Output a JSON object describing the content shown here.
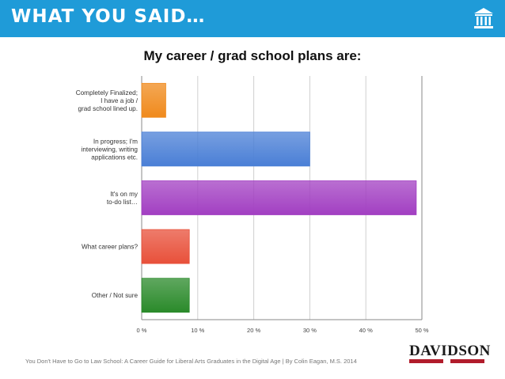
{
  "header": {
    "title": "WHAT YOU SAID…",
    "background": "#1f9bd8",
    "icon": "columned-building-icon"
  },
  "chart_data": {
    "type": "bar",
    "orientation": "horizontal",
    "title": "My career / grad school plans are:",
    "categories": [
      [
        "Completely Finalized;",
        "I have a job /",
        "grad school lined up."
      ],
      [
        "In progress; I'm",
        "interviewing, writing",
        "applications etc."
      ],
      [
        "It's on my",
        "to-do list…"
      ],
      [
        "What career plans?"
      ],
      [
        "Other / Not sure"
      ]
    ],
    "values": [
      4.3,
      30,
      49,
      8.5,
      8.5
    ],
    "colors": [
      "#f08a1c",
      "#4a7fd6",
      "#a23fc2",
      "#e8503a",
      "#2a8a2a"
    ],
    "xlim": [
      0,
      50
    ],
    "xticks": [
      "0 %",
      "10 %",
      "20 %",
      "30 %",
      "40 %",
      "50 %"
    ],
    "grid": true
  },
  "footer": {
    "citation": "You Don't Have to Go to Law School: A Career Guide for Liberal Arts Graduates in the Digital Age  |  By Colin Eagan, M.S. 2014",
    "logo_text": "DAVIDSON",
    "logo_color": "#b11c2b"
  }
}
